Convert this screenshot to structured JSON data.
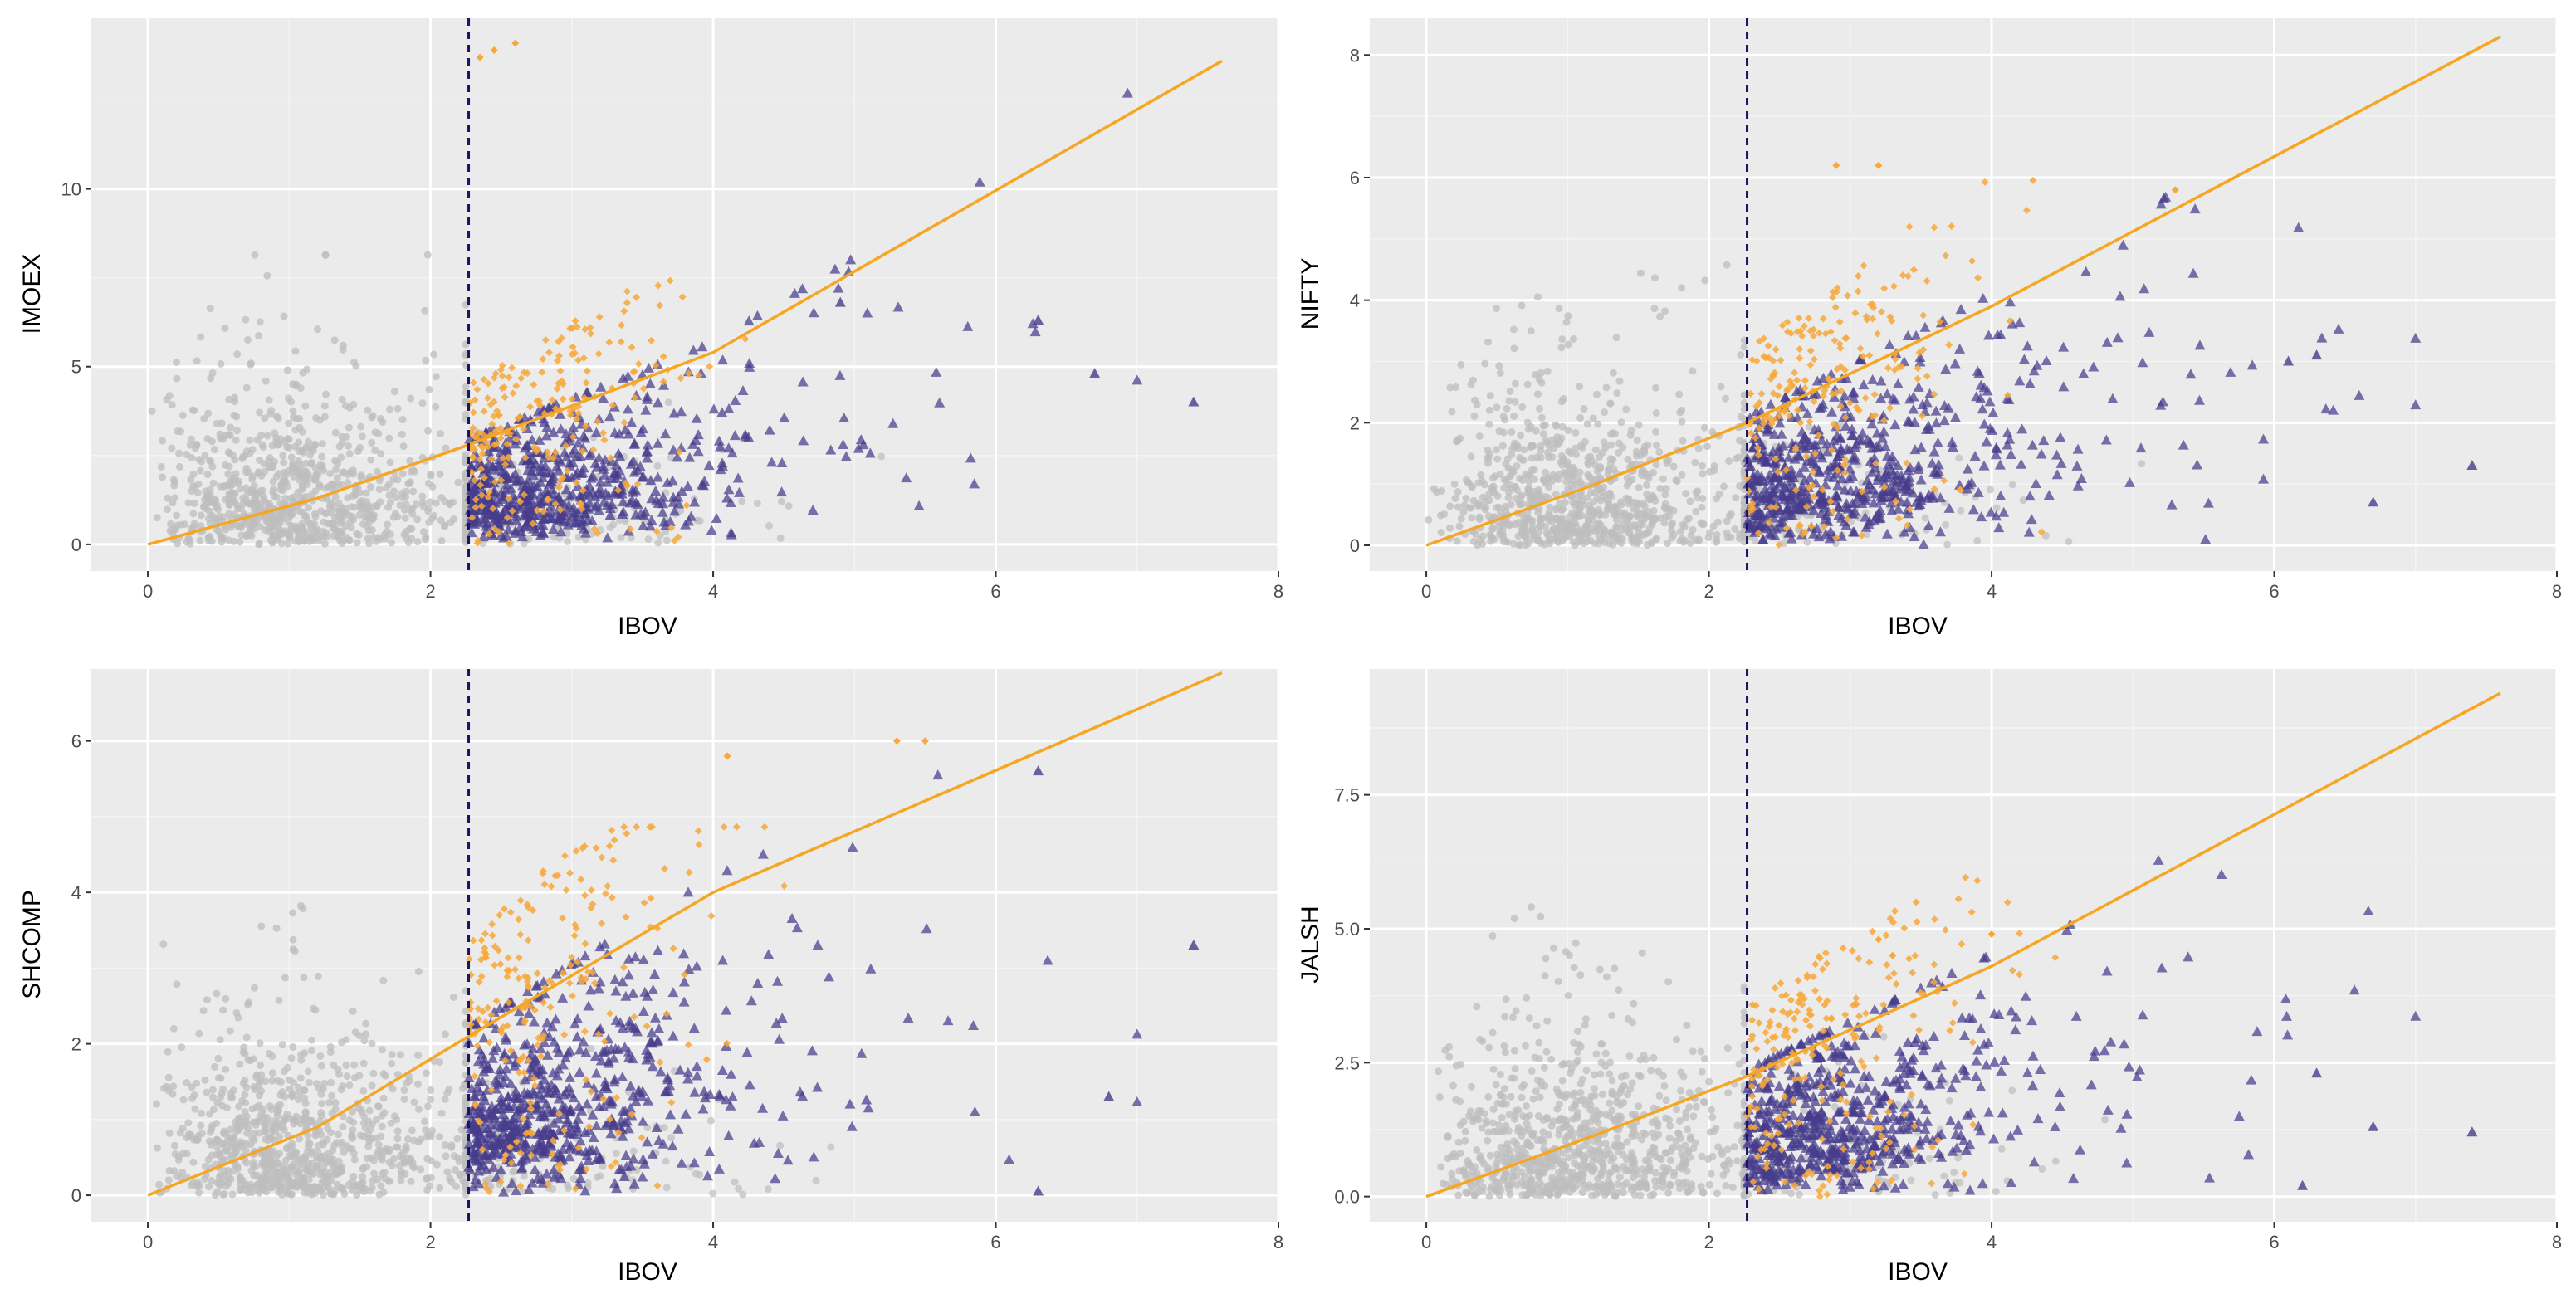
{
  "colors": {
    "panel_bg": "#EBEBEB",
    "grid_major": "#FFFFFF",
    "grid_minor": "#F4F4F4",
    "gray_points": "#BDBDBD",
    "orange_points": "#F7A83A",
    "purple_points": "#463C8C",
    "fit_line": "#F5A623",
    "threshold_line": "#1B1464",
    "tick_text": "#4D4D4D"
  },
  "chart_data": [
    {
      "type": "scatter",
      "xlabel": "IBOV",
      "ylabel": "IMOEX",
      "xlim": [
        -0.4,
        8.0
      ],
      "ylim": [
        -0.75,
        14.8
      ],
      "xticks": [
        "0",
        "2",
        "4",
        "6",
        "8"
      ],
      "yticks": [
        "0",
        "5",
        "10"
      ],
      "threshold_x": 2.27,
      "fit_line": {
        "x": [
          0,
          1.2,
          2.27,
          4.0,
          7.6
        ],
        "y": [
          0,
          1.3,
          2.8,
          5.4,
          13.6
        ]
      },
      "extremes": {
        "orange": [
          [
            2.35,
            13.7
          ],
          [
            2.45,
            13.9
          ],
          [
            2.6,
            14.1
          ]
        ],
        "purple": [
          [
            7.4,
            4.0
          ],
          [
            6.7,
            4.8
          ],
          [
            6.3,
            6.3
          ],
          [
            4.9,
            6.8
          ]
        ]
      },
      "series": [
        {
          "name": "below threshold",
          "marker": "circle",
          "color": "#BDBDBD"
        },
        {
          "name": "above threshold (orange)",
          "marker": "diamond",
          "color": "#F7A83A"
        },
        {
          "name": "above threshold (purple)",
          "marker": "triangle",
          "color": "#463C8C"
        }
      ]
    },
    {
      "type": "scatter",
      "xlabel": "IBOV",
      "ylabel": "NIFTY",
      "xlim": [
        -0.4,
        8.0
      ],
      "ylim": [
        -0.42,
        8.6
      ],
      "xticks": [
        "0",
        "2",
        "4",
        "6",
        "8"
      ],
      "yticks": [
        "0",
        "2",
        "4",
        "6",
        "8"
      ],
      "threshold_x": 2.27,
      "fit_line": {
        "x": [
          0,
          1.2,
          2.27,
          4.0,
          7.6
        ],
        "y": [
          0,
          1.0,
          2.0,
          3.9,
          8.3
        ]
      },
      "extremes": {
        "orange": [
          [
            2.9,
            6.2
          ],
          [
            3.2,
            6.2
          ],
          [
            5.3,
            5.8
          ]
        ],
        "purple": [
          [
            7.4,
            1.3
          ],
          [
            6.3,
            3.1
          ],
          [
            6.1,
            3.0
          ],
          [
            6.7,
            0.7
          ]
        ]
      },
      "series": [
        {
          "name": "below threshold",
          "marker": "circle",
          "color": "#BDBDBD"
        },
        {
          "name": "above threshold (orange)",
          "marker": "diamond",
          "color": "#F7A83A"
        },
        {
          "name": "above threshold (purple)",
          "marker": "triangle",
          "color": "#463C8C"
        }
      ]
    },
    {
      "type": "scatter",
      "xlabel": "IBOV",
      "ylabel": "SHCOMP",
      "xlim": [
        -0.4,
        8.0
      ],
      "ylim": [
        -0.35,
        6.95
      ],
      "xticks": [
        "0",
        "2",
        "4",
        "6",
        "8"
      ],
      "yticks": [
        "0",
        "2",
        "4",
        "6"
      ],
      "threshold_x": 2.27,
      "fit_line": {
        "x": [
          0,
          1.2,
          2.27,
          4.0,
          7.6
        ],
        "y": [
          0,
          0.9,
          2.1,
          4.0,
          6.9
        ]
      },
      "extremes": {
        "orange": [
          [
            5.3,
            6.0
          ],
          [
            5.5,
            6.0
          ],
          [
            4.1,
            5.8
          ]
        ],
        "purple": [
          [
            7.4,
            3.3
          ],
          [
            6.3,
            5.6
          ],
          [
            6.8,
            1.3
          ],
          [
            6.3,
            0.05
          ]
        ]
      },
      "series": [
        {
          "name": "below threshold",
          "marker": "circle",
          "color": "#BDBDBD"
        },
        {
          "name": "above threshold (orange)",
          "marker": "diamond",
          "color": "#F7A83A"
        },
        {
          "name": "above threshold (purple)",
          "marker": "triangle",
          "color": "#463C8C"
        }
      ]
    },
    {
      "type": "scatter",
      "xlabel": "IBOV",
      "ylabel": "JALSH",
      "xlim": [
        -0.4,
        8.0
      ],
      "ylim": [
        -0.47,
        9.85
      ],
      "xticks": [
        "0",
        "2",
        "4",
        "6",
        "8"
      ],
      "yticks": [
        "0.0",
        "2.5",
        "5.0",
        "7.5"
      ],
      "threshold_x": 2.27,
      "fit_line": {
        "x": [
          0,
          1.2,
          2.27,
          4.0,
          7.6
        ],
        "y": [
          0,
          1.15,
          2.25,
          4.3,
          9.4
        ]
      },
      "extremes": {
        "orange": [
          [
            4.0,
            4.9
          ],
          [
            3.2,
            4.8
          ],
          [
            3.3,
            4.5
          ]
        ],
        "purple": [
          [
            7.4,
            1.2
          ],
          [
            6.7,
            1.3
          ],
          [
            6.3,
            2.3
          ],
          [
            6.2,
            0.2
          ]
        ]
      },
      "series": [
        {
          "name": "below threshold",
          "marker": "circle",
          "color": "#BDBDBD"
        },
        {
          "name": "above threshold (orange)",
          "marker": "diamond",
          "color": "#F7A83A"
        },
        {
          "name": "above threshold (purple)",
          "marker": "triangle",
          "color": "#463C8C"
        }
      ]
    }
  ]
}
